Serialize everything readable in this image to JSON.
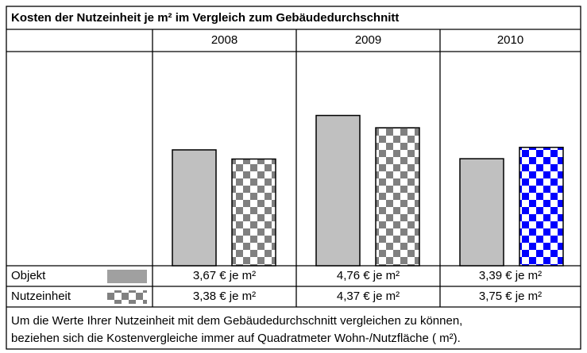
{
  "chart_data": {
    "type": "bar",
    "title": "Kosten der Nutzeinheit je m² im Vergleich zum Gebäudedurchschnitt",
    "categories": [
      "2008",
      "2009",
      "2010"
    ],
    "series": [
      {
        "name": "Objekt",
        "color": "#c0c0c0",
        "values": [
          3.67,
          4.76,
          3.39
        ],
        "value_labels": [
          "3,67 € je m²",
          "4,76 € je m²",
          "3,39 € je m²"
        ]
      },
      {
        "name": "Nutzeinheit",
        "color": "#808080",
        "colors": [
          "#808080",
          "#808080",
          "#0000ff"
        ],
        "values": [
          3.38,
          4.37,
          3.75
        ],
        "value_labels": [
          "3,38 € je m²",
          "4,37 € je m²",
          "3,75 € je m²"
        ]
      }
    ],
    "footnote": [
      "Um die Werte Ihrer Nutzeinheit mit dem Gebäudedurchschnitt vergleichen zu können,",
      "beziehen sich die Kostenvergleiche immer auf Quadratmeter Wohn-/Nutzfläche ( m²)."
    ]
  }
}
